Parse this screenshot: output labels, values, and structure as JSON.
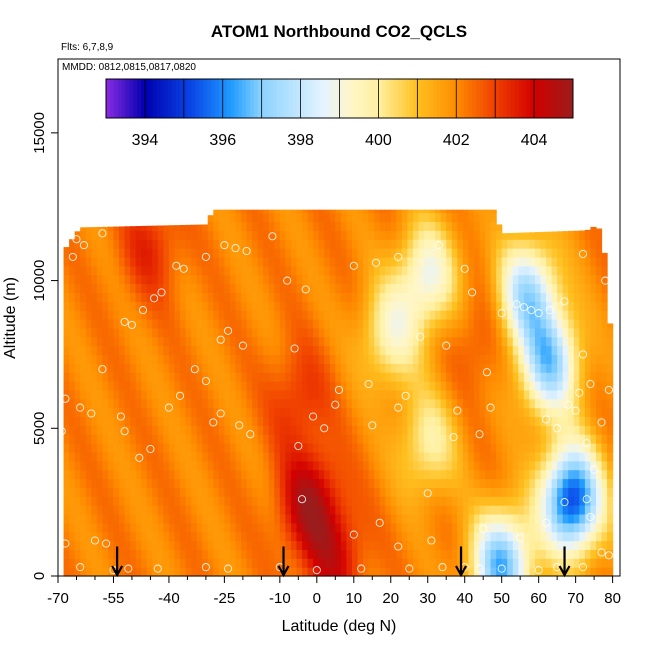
{
  "chart_data": {
    "type": "heatmap",
    "title": "ATOM1 Northbound CO2_QCLS",
    "flights_label": "Flts: 6,7,8,9",
    "mmdd_label": "MMDD: 0812,0815,0817,0820",
    "xlabel": "Latitude (deg N)",
    "ylabel": "Altitude (m)",
    "xlim": [
      -70,
      82
    ],
    "ylim": [
      0,
      17500
    ],
    "x_ticks": [
      -70,
      -55,
      -40,
      -25,
      -10,
      0,
      10,
      20,
      30,
      40,
      50,
      60,
      70,
      80
    ],
    "x_tick_labels": [
      "-70",
      "-55",
      "-40",
      "-25",
      "-10",
      "0",
      "10",
      "20",
      "30",
      "40",
      "50",
      "60",
      "70",
      "80"
    ],
    "x_minor_ticks": [
      -65,
      -60,
      -50,
      -45,
      -35,
      -30,
      -20,
      -15,
      -5,
      5,
      15,
      25,
      35,
      45,
      55,
      65,
      75
    ],
    "y_ticks": [
      0,
      5000,
      10000,
      15000
    ],
    "y_tick_labels": [
      "0",
      "5000",
      "10000",
      "15000"
    ],
    "colorbar": {
      "range": [
        393,
        405
      ],
      "tick_values": [
        394,
        396,
        398,
        400,
        402,
        404
      ],
      "tick_labels": [
        "394",
        "396",
        "398",
        "400",
        "402",
        "404"
      ],
      "stops": [
        {
          "v": 393.0,
          "c": "#8a2be2"
        },
        {
          "v": 394.0,
          "c": "#0000b0"
        },
        {
          "v": 395.2,
          "c": "#0a46e6"
        },
        {
          "v": 396.2,
          "c": "#1e9bff"
        },
        {
          "v": 397.0,
          "c": "#8cd2ff"
        },
        {
          "v": 398.6,
          "c": "#e6f4ff"
        },
        {
          "v": 399.3,
          "c": "#fff6c8"
        },
        {
          "v": 400.0,
          "c": "#fff0a0"
        },
        {
          "v": 401.0,
          "c": "#ffc020"
        },
        {
          "v": 402.0,
          "c": "#ff8c00"
        },
        {
          "v": 403.0,
          "c": "#f04000"
        },
        {
          "v": 404.0,
          "c": "#d20000"
        },
        {
          "v": 405.0,
          "c": "#9b1c1c"
        }
      ]
    },
    "data_extent": {
      "lat_min": -68.5,
      "lat_max": 80,
      "alt_bottom": 0,
      "alt_top_default": 11200,
      "alt_top_profile": [
        {
          "lat": -68.5,
          "alt": 11000
        },
        {
          "lat": -64,
          "alt": 11800
        },
        {
          "lat": -30,
          "alt": 11900
        },
        {
          "lat": -28,
          "alt": 12400
        },
        {
          "lat": 48,
          "alt": 12400
        },
        {
          "lat": 50,
          "alt": 11600
        },
        {
          "lat": 73,
          "alt": 11700
        },
        {
          "lat": 76,
          "alt": 11900
        },
        {
          "lat": 78,
          "alt": 10800
        },
        {
          "lat": 80,
          "alt": 7200
        }
      ]
    },
    "co2_field_features": [
      {
        "name": "southern-high-band",
        "lat": -45,
        "alt": 11200,
        "value": 403.5
      },
      {
        "name": "tropical-high-core",
        "lat": -2,
        "alt": 2500,
        "value": 404.8
      },
      {
        "name": "tropical-column",
        "lat": -5,
        "alt": 6000,
        "value": 403.4
      },
      {
        "name": "surface-tropics",
        "lat": 5,
        "alt": 600,
        "value": 404.0
      },
      {
        "name": "upper-low-30n",
        "lat": 30,
        "alt": 10200,
        "value": 398.6
      },
      {
        "name": "upper-low-20n",
        "lat": 20,
        "alt": 8200,
        "value": 399.2
      },
      {
        "name": "midlat-low-layer",
        "lat": 30,
        "alt": 4500,
        "value": 399.6
      },
      {
        "name": "midlat-warm-spot",
        "lat": 44,
        "alt": 8000,
        "value": 403.0
      },
      {
        "name": "arctic-deep-low",
        "lat": 69,
        "alt": 2600,
        "value": 394.2
      },
      {
        "name": "arctic-low-upper",
        "lat": 63,
        "alt": 7200,
        "value": 396.8
      },
      {
        "name": "nh-surface-low",
        "lat": 50,
        "alt": 400,
        "value": 396.0
      },
      {
        "name": "nh-upper-cool",
        "lat": 57,
        "alt": 9600,
        "value": 397.2
      }
    ],
    "sample_points": [
      [
        -66,
        10800
      ],
      [
        -65,
        11400
      ],
      [
        -63,
        11200
      ],
      [
        -58,
        11600
      ],
      [
        -68,
        6000
      ],
      [
        -69,
        4900
      ],
      [
        -64,
        5700
      ],
      [
        -61,
        5500
      ],
      [
        -53,
        5400
      ],
      [
        -52,
        4900
      ],
      [
        -58,
        7000
      ],
      [
        -52,
        8600
      ],
      [
        -50,
        8500
      ],
      [
        -47,
        9000
      ],
      [
        -44,
        9400
      ],
      [
        -42,
        9600
      ],
      [
        -38,
        10500
      ],
      [
        -36,
        10400
      ],
      [
        -30,
        10800
      ],
      [
        -25,
        11200
      ],
      [
        -22,
        11100
      ],
      [
        -19,
        11000
      ],
      [
        -12,
        11500
      ],
      [
        -33,
        7000
      ],
      [
        -30,
        6600
      ],
      [
        -26,
        8000
      ],
      [
        -24,
        8300
      ],
      [
        -20,
        7800
      ],
      [
        -37,
        6100
      ],
      [
        -40,
        5700
      ],
      [
        -28,
        5200
      ],
      [
        -26,
        5500
      ],
      [
        -21,
        5100
      ],
      [
        -18,
        4800
      ],
      [
        -5,
        4400
      ],
      [
        -1,
        5400
      ],
      [
        2,
        5000
      ],
      [
        5,
        5800
      ],
      [
        -45,
        4300
      ],
      [
        -48,
        4000
      ],
      [
        -8,
        10000
      ],
      [
        -6,
        7700
      ],
      [
        -3,
        9700
      ],
      [
        10,
        10500
      ],
      [
        16,
        10600
      ],
      [
        22,
        10800
      ],
      [
        33,
        11200
      ],
      [
        40,
        10400
      ],
      [
        6,
        6300
      ],
      [
        14,
        6500
      ],
      [
        15,
        5100
      ],
      [
        22,
        5700
      ],
      [
        24,
        6100
      ],
      [
        28,
        8100
      ],
      [
        35,
        7800
      ],
      [
        37,
        4700
      ],
      [
        38,
        5600
      ],
      [
        44,
        4800
      ],
      [
        47,
        5700
      ],
      [
        46,
        6900
      ],
      [
        42,
        9600
      ],
      [
        50,
        8900
      ],
      [
        54,
        9200
      ],
      [
        56,
        9100
      ],
      [
        58,
        9000
      ],
      [
        60,
        8900
      ],
      [
        63,
        9000
      ],
      [
        67,
        9300
      ],
      [
        72,
        10900
      ],
      [
        76,
        12000
      ],
      [
        78,
        10000
      ],
      [
        72,
        7500
      ],
      [
        74,
        6500
      ],
      [
        71,
        6200
      ],
      [
        68,
        5800
      ],
      [
        70,
        5600
      ],
      [
        62,
        5300
      ],
      [
        65,
        5000
      ],
      [
        73,
        4500
      ],
      [
        77,
        5200
      ],
      [
        79,
        6300
      ],
      [
        75,
        3600
      ],
      [
        73,
        2600
      ],
      [
        67,
        2500
      ],
      [
        74,
        2000
      ],
      [
        77,
        800
      ],
      [
        79,
        700
      ],
      [
        17,
        1800
      ],
      [
        30,
        2800
      ],
      [
        45,
        1600
      ],
      [
        22,
        1000
      ],
      [
        40,
        300
      ],
      [
        -64,
        300
      ],
      [
        -55,
        200
      ],
      [
        -51,
        250
      ],
      [
        -43,
        250
      ],
      [
        -30,
        300
      ],
      [
        -24,
        250
      ],
      [
        -10,
        300
      ],
      [
        0,
        200
      ],
      [
        12,
        250
      ],
      [
        25,
        250
      ],
      [
        34,
        300
      ],
      [
        44,
        250
      ],
      [
        50,
        250
      ],
      [
        60,
        200
      ],
      [
        65,
        300
      ],
      [
        72,
        300
      ],
      [
        -68,
        1100
      ],
      [
        -60,
        1200
      ],
      [
        -57,
        1100
      ],
      [
        10,
        1400
      ],
      [
        55,
        1300
      ],
      [
        62,
        1800
      ],
      [
        31,
        1200
      ],
      [
        -4,
        2600
      ]
    ],
    "flight_leg_arrows": [
      -54,
      -9,
      39,
      67
    ]
  }
}
